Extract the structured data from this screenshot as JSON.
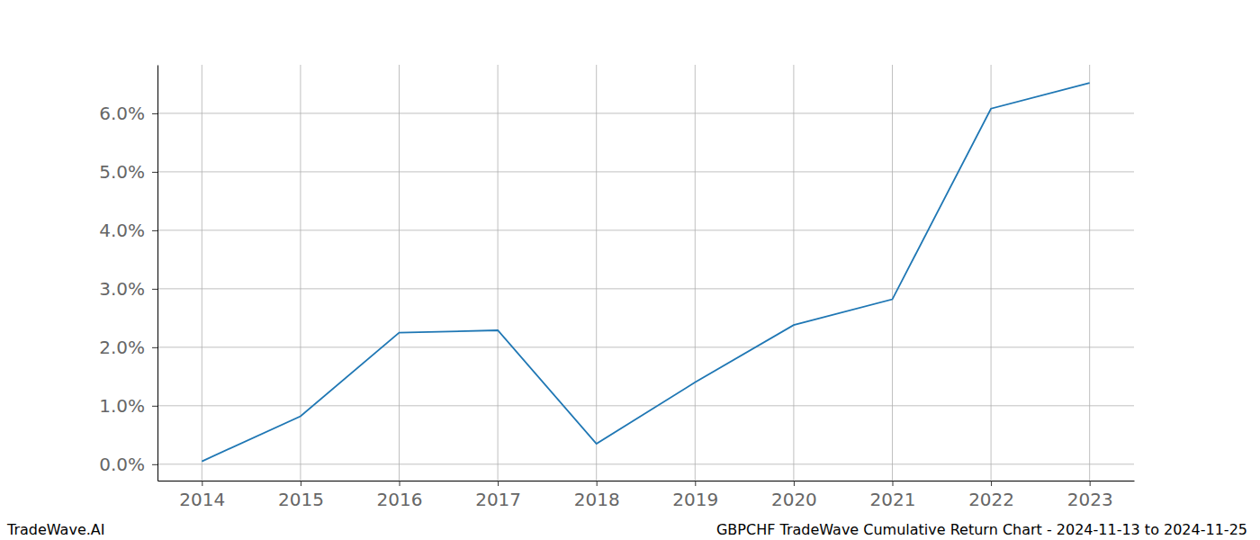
{
  "chart_data": {
    "type": "line",
    "title": "GBPCHF TradeWave Cumulative Return Chart - 2024-11-13 to 2024-11-25",
    "watermark": "TradeWave.AI",
    "x": [
      2014,
      2015,
      2016,
      2017,
      2018,
      2019,
      2020,
      2021,
      2022,
      2023
    ],
    "values": [
      0.05,
      0.82,
      2.25,
      2.29,
      0.35,
      1.4,
      2.38,
      2.82,
      6.08,
      6.52
    ],
    "color": "#1f77b4",
    "xlim": [
      2013.55,
      2023.45
    ],
    "xticks": [
      2014,
      2015,
      2016,
      2017,
      2018,
      2019,
      2020,
      2021,
      2022,
      2023
    ],
    "ylim": [
      -0.28,
      6.83
    ],
    "yticks": [
      {
        "value": 0,
        "label": "0.0%"
      },
      {
        "value": 1,
        "label": "1.0%"
      },
      {
        "value": 2,
        "label": "2.0%"
      },
      {
        "value": 3,
        "label": "3.0%"
      },
      {
        "value": 4,
        "label": "4.0%"
      },
      {
        "value": 5,
        "label": "5.0%"
      },
      {
        "value": 6,
        "label": "6.0%"
      }
    ],
    "grid": true
  }
}
